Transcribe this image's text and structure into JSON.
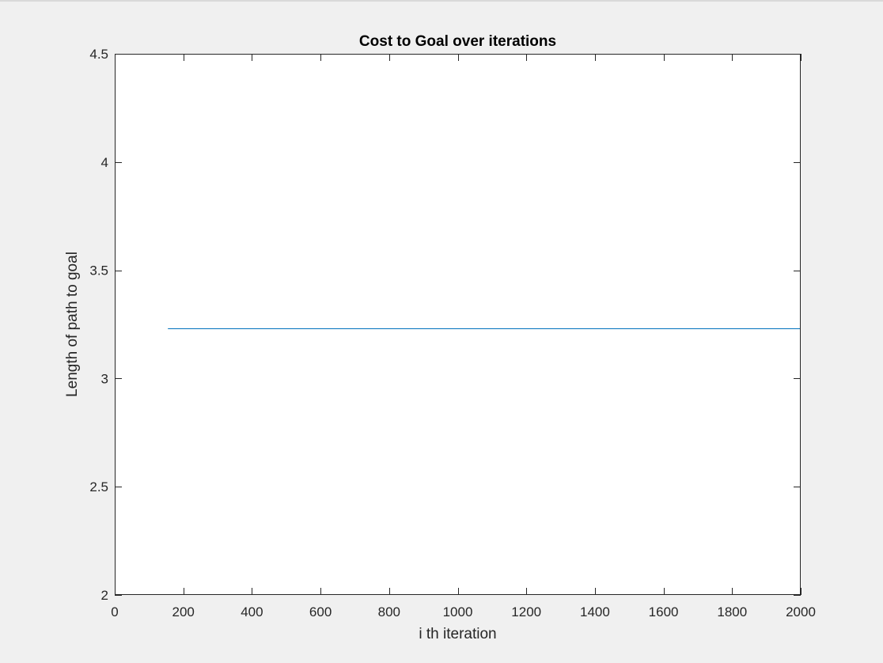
{
  "chart_data": {
    "type": "line",
    "title": "Cost to Goal over iterations",
    "xlabel": "i th iteration",
    "ylabel": "Length of path to goal",
    "xlim": [
      0,
      2000
    ],
    "ylim": [
      2,
      4.5
    ],
    "xticks": [
      0,
      200,
      400,
      600,
      800,
      1000,
      1200,
      1400,
      1600,
      1800,
      2000
    ],
    "yticks": [
      2,
      2.5,
      3,
      3.5,
      4,
      4.5
    ],
    "xtick_labels": [
      "0",
      "200",
      "400",
      "600",
      "800",
      "1000",
      "1200",
      "1400",
      "1600",
      "1800",
      "2000"
    ],
    "ytick_labels": [
      "2",
      "2.5",
      "3",
      "3.5",
      "4",
      "4.5"
    ],
    "grid": false,
    "series": [
      {
        "color": "#0072bd",
        "x": [
          155,
          2000
        ],
        "y": [
          3.232,
          3.232
        ]
      }
    ]
  }
}
